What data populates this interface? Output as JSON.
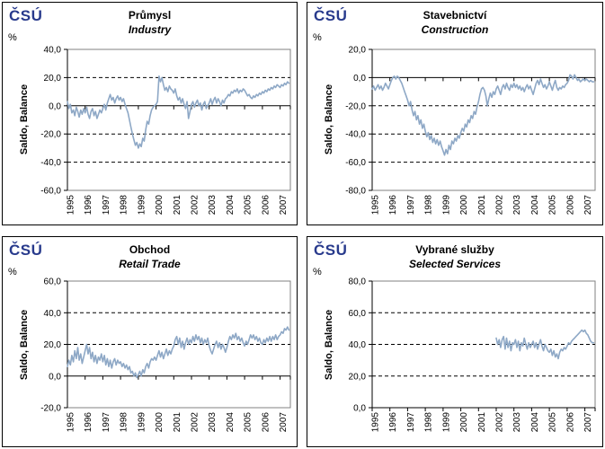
{
  "logo_text": "ČSÚ",
  "colors": {
    "line": "#8ea8c6",
    "logo": "#283a8c",
    "grid": "#000000",
    "plot_border": "#808080",
    "axis": "#000000"
  },
  "x_axis": {
    "start": 1995,
    "end": 2007.58,
    "labels": [
      "1995",
      "1996",
      "1997",
      "1998",
      "1999",
      "2000",
      "2001",
      "2002",
      "2003",
      "2004",
      "2005",
      "2006",
      "2007"
    ]
  },
  "chart_data": [
    {
      "type": "line",
      "title_cs": "Průmysl",
      "title_en": "Industry",
      "unit": "%",
      "ylabel": "Saldo, Balance",
      "ylim": [
        -60,
        40
      ],
      "y_ticks": [
        {
          "v": 40,
          "t": "40,0"
        },
        {
          "v": 20,
          "t": "20,0"
        },
        {
          "v": 0,
          "t": "0,0"
        },
        {
          "v": -20,
          "t": "-20,0"
        },
        {
          "v": -40,
          "t": "-40,0"
        },
        {
          "v": -60,
          "t": "-60,0"
        }
      ],
      "dashed_gridlines": [
        20,
        -20,
        -40
      ],
      "zero_line": 0,
      "legend": "off",
      "series": [
        {
          "name": "Saldo, Balance",
          "x_start": 1995.0,
          "x_step": 0.0833333,
          "values": [
            3,
            -2,
            1,
            -5,
            -3,
            -7,
            -1,
            -4,
            -8,
            -3,
            -6,
            -2,
            -5,
            -1,
            -6,
            -9,
            -4,
            -2,
            -7,
            -4,
            -9,
            -6,
            -3,
            -5,
            -2,
            1,
            -3,
            2,
            5,
            8,
            4,
            6,
            2,
            5,
            7,
            4,
            6,
            3,
            5,
            1,
            -2,
            -5,
            -10,
            -15,
            -20,
            -24,
            -28,
            -26,
            -30,
            -27,
            -29,
            -23,
            -25,
            -17,
            -11,
            -13,
            -7,
            -3,
            -1,
            0,
            1,
            3,
            21,
            17,
            20,
            15,
            11,
            13,
            10,
            14,
            12,
            11,
            9,
            12,
            7,
            4,
            6,
            2,
            5,
            1,
            -2,
            3,
            -9,
            -4,
            1,
            3,
            -1,
            2,
            4,
            0,
            2,
            -3,
            1,
            3,
            -2,
            0,
            2,
            5,
            1,
            4,
            6,
            2,
            5,
            3,
            0,
            4,
            2,
            5,
            6,
            8,
            7,
            10,
            9,
            11,
            10,
            12,
            9,
            11,
            10,
            12,
            11,
            9,
            7,
            8,
            6,
            5,
            7,
            6,
            8,
            7,
            9,
            8,
            10,
            9,
            11,
            10,
            12,
            11,
            13,
            12,
            14,
            13,
            15,
            14,
            13,
            15,
            14,
            16,
            15,
            17,
            16
          ]
        }
      ]
    },
    {
      "type": "line",
      "title_cs": "Stavebnictví",
      "title_en": "Construction",
      "unit": "%",
      "ylabel": "Saldo, Balance",
      "ylim": [
        -80,
        20
      ],
      "y_ticks": [
        {
          "v": 20,
          "t": "20,0"
        },
        {
          "v": 0,
          "t": "0,0"
        },
        {
          "v": -20,
          "t": "-20,0"
        },
        {
          "v": -40,
          "t": "-40,0"
        },
        {
          "v": -60,
          "t": "-60,0"
        },
        {
          "v": -80,
          "t": "-80,0"
        }
      ],
      "dashed_gridlines": [
        -20,
        -40,
        -60
      ],
      "zero_line": 0,
      "legend": "off",
      "series": [
        {
          "name": "Saldo, Balance",
          "x_start": 1995.0,
          "x_step": 0.0833333,
          "values": [
            -8,
            -6,
            -9,
            -7,
            -5,
            -8,
            -6,
            -9,
            -7,
            -4,
            -6,
            -8,
            -5,
            -2,
            0,
            1,
            -1,
            1,
            0,
            -2,
            -4,
            -7,
            -10,
            -13,
            -16,
            -20,
            -17,
            -23,
            -27,
            -24,
            -30,
            -27,
            -33,
            -30,
            -36,
            -33,
            -38,
            -42,
            -39,
            -44,
            -41,
            -46,
            -43,
            -47,
            -44,
            -48,
            -45,
            -49,
            -52,
            -55,
            -51,
            -54,
            -48,
            -51,
            -45,
            -47,
            -43,
            -45,
            -41,
            -43,
            -39,
            -36,
            -38,
            -33,
            -35,
            -30,
            -32,
            -27,
            -29,
            -24,
            -26,
            -21,
            -17,
            -12,
            -8,
            -7,
            -9,
            -13,
            -20,
            -15,
            -11,
            -14,
            -10,
            -12,
            -8,
            -6,
            -9,
            -12,
            -7,
            -5,
            -8,
            -4,
            -7,
            -9,
            -5,
            -7,
            -4,
            -7,
            -5,
            -8,
            -6,
            -9,
            -7,
            -10,
            -7,
            -5,
            -8,
            -6,
            -9,
            -12,
            -8,
            -4,
            -2,
            -5,
            -1,
            -4,
            -7,
            -5,
            -8,
            -6,
            -3,
            -6,
            -9,
            -5,
            -2,
            -7,
            -9,
            -7,
            -8,
            -6,
            -7,
            -5,
            -4,
            -2,
            2,
            1,
            -1,
            2,
            0,
            -2,
            -1,
            -3,
            -2,
            -1,
            -2,
            -1,
            -2,
            -3,
            -2,
            -3,
            -3
          ]
        }
      ]
    },
    {
      "type": "line",
      "title_cs": "Obchod",
      "title_en": "Retail Trade",
      "unit": "%",
      "ylabel": "Saldo, Balance",
      "ylim": [
        -20,
        60
      ],
      "y_ticks": [
        {
          "v": 60,
          "t": "60,0"
        },
        {
          "v": 40,
          "t": "40,0"
        },
        {
          "v": 20,
          "t": "20,0"
        },
        {
          "v": 0,
          "t": "0,0"
        },
        {
          "v": -20,
          "t": "-20,0"
        }
      ],
      "dashed_gridlines": [
        40,
        20
      ],
      "zero_line": 0,
      "legend": "off",
      "series": [
        {
          "name": "Saldo, Balance",
          "x_start": 1995.0,
          "x_step": 0.0833333,
          "values": [
            6,
            10,
            7,
            13,
            9,
            16,
            11,
            18,
            10,
            14,
            8,
            12,
            16,
            20,
            14,
            18,
            11,
            15,
            9,
            13,
            8,
            12,
            10,
            14,
            9,
            13,
            7,
            11,
            6,
            10,
            5,
            9,
            11,
            7,
            10,
            8,
            9,
            6,
            8,
            5,
            7,
            4,
            6,
            2,
            3,
            0,
            2,
            -1,
            1,
            3,
            0,
            4,
            2,
            6,
            8,
            5,
            9,
            11,
            10,
            12,
            10,
            13,
            16,
            12,
            15,
            11,
            14,
            17,
            13,
            16,
            14,
            17,
            19,
            23,
            25,
            20,
            24,
            18,
            22,
            17,
            21,
            24,
            20,
            23,
            21,
            25,
            22,
            26,
            23,
            25,
            21,
            24,
            20,
            23,
            21,
            24,
            19,
            16,
            14,
            17,
            20,
            22,
            18,
            21,
            17,
            20,
            18,
            15,
            18,
            22,
            25,
            23,
            26,
            24,
            27,
            23,
            25,
            22,
            24,
            21,
            19,
            22,
            20,
            23,
            26,
            24,
            26,
            23,
            25,
            22,
            24,
            21,
            20,
            23,
            21,
            24,
            22,
            25,
            22,
            25,
            23,
            26,
            23,
            25,
            26,
            28,
            27,
            30,
            29,
            31,
            29
          ]
        }
      ]
    },
    {
      "type": "line",
      "title_cs": "Vybrané služby",
      "title_en": "Selected Services",
      "unit": "%",
      "ylabel": "Saldo, Balance",
      "ylim": [
        0,
        80
      ],
      "y_ticks": [
        {
          "v": 80,
          "t": "80,0"
        },
        {
          "v": 60,
          "t": "60,0"
        },
        {
          "v": 40,
          "t": "40,0"
        },
        {
          "v": 20,
          "t": "20,0"
        },
        {
          "v": 0,
          "t": "0,0"
        }
      ],
      "dashed_gridlines": [
        60,
        40,
        20
      ],
      "zero_line": 0,
      "legend": "off",
      "series": [
        {
          "name": "Saldo, Balance",
          "x_start": 2002.0,
          "x_step": 0.0833333,
          "values": [
            44,
            40,
            43,
            38,
            43,
            45,
            37,
            44,
            38,
            42,
            36,
            41,
            40,
            43,
            38,
            42,
            36,
            41,
            39,
            44,
            40,
            37,
            41,
            38,
            40,
            42,
            38,
            41,
            37,
            40,
            43,
            39,
            36,
            40,
            38,
            36,
            35,
            37,
            33,
            36,
            32,
            34,
            31,
            35,
            37,
            36,
            38,
            37,
            39,
            41,
            40,
            42,
            43,
            44,
            45,
            46,
            47,
            48,
            49,
            48,
            49,
            47,
            46,
            44,
            42,
            41,
            41
          ]
        }
      ]
    }
  ]
}
